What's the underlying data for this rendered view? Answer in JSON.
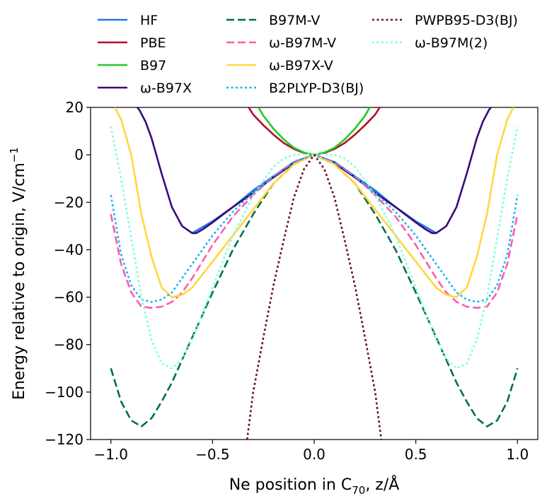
{
  "chart_data": {
    "type": "line",
    "title": "",
    "xlabel": "Ne position in C",
    "xlabel_sub": "70",
    "xlabel_tail": ", z/Å",
    "ylabel": "Energy relative to origin, V/cm",
    "ylabel_sup": "−1",
    "xlim": [
      -1.1,
      1.1
    ],
    "ylim": [
      -120,
      20
    ],
    "xticks": [
      -1.0,
      -0.5,
      0.0,
      0.5,
      1.0
    ],
    "xtick_labels": [
      "−1.0",
      "−0.5",
      "0.0",
      "0.5",
      "1.0"
    ],
    "yticks": [
      -120,
      -100,
      -80,
      -60,
      -40,
      -20,
      0,
      20
    ],
    "ytick_labels": [
      "−120",
      "−100",
      "−80",
      "−60",
      "−40",
      "−20",
      "0",
      "20"
    ],
    "legend_position": "top, outside, 3 columns",
    "series": [
      {
        "name": "HF",
        "color": "#1f77e8",
        "dash": "solid",
        "x": [
          0,
          0.1,
          0.2,
          0.3,
          0.4,
          0.5,
          0.6
        ],
        "y": [
          0,
          -3,
          -9,
          -15,
          -22,
          -28,
          -33
        ]
      },
      {
        "name": "PBE",
        "color": "#b0102a",
        "dash": "solid",
        "x": [
          0,
          0.05,
          0.1,
          0.15,
          0.2,
          0.25,
          0.3,
          0.33
        ],
        "y": [
          0,
          0.8,
          2.5,
          5,
          8.5,
          12.5,
          17,
          21
        ]
      },
      {
        "name": "B97",
        "color": "#22cc22",
        "dash": "solid",
        "x": [
          0,
          0.05,
          0.1,
          0.15,
          0.2,
          0.25,
          0.28
        ],
        "y": [
          0,
          1,
          3,
          6.5,
          11,
          16.5,
          21
        ]
      },
      {
        "name": "ω-B97X",
        "color": "#3a0a78",
        "dash": "solid",
        "x": [
          0,
          0.1,
          0.2,
          0.3,
          0.4,
          0.5,
          0.55,
          0.58,
          0.6,
          0.65,
          0.7,
          0.75,
          0.8,
          0.83,
          0.86,
          0.88
        ],
        "y": [
          0,
          -3.5,
          -9.5,
          -16,
          -22,
          -28.5,
          -31.5,
          -33,
          -33,
          -30,
          -22,
          -8,
          7,
          14,
          19,
          21
        ]
      },
      {
        "name": "B97M-V",
        "color": "#006e50",
        "dash": "dashed",
        "x": [
          0,
          0.1,
          0.2,
          0.3,
          0.4,
          0.5,
          0.6,
          0.7,
          0.75,
          0.8,
          0.85,
          0.9,
          0.95,
          1.0
        ],
        "y": [
          0,
          -4,
          -12,
          -25,
          -40,
          -58,
          -77,
          -96,
          -104,
          -111,
          -114.5,
          -112,
          -104,
          -90
        ]
      },
      {
        "name": "ω-B97M-V",
        "color": "#ff5aaa",
        "dash": "dashed",
        "x": [
          0,
          0.1,
          0.2,
          0.3,
          0.4,
          0.5,
          0.6,
          0.65,
          0.7,
          0.75,
          0.8,
          0.85,
          0.9,
          0.95,
          1.0
        ],
        "y": [
          0,
          -3,
          -9,
          -17,
          -26,
          -38,
          -52,
          -58,
          -62,
          -64,
          -64.5,
          -64,
          -58,
          -46,
          -25
        ]
      },
      {
        "name": "ω-B97X-V",
        "color": "#ffd740",
        "dash": "solid",
        "x": [
          0,
          0.1,
          0.2,
          0.3,
          0.4,
          0.5,
          0.6,
          0.65,
          0.7,
          0.75,
          0.8,
          0.85,
          0.9,
          0.95,
          0.98
        ],
        "y": [
          0,
          -4,
          -12,
          -23,
          -34,
          -45,
          -56,
          -59,
          -60,
          -56,
          -43,
          -25,
          0,
          15,
          20
        ]
      },
      {
        "name": "B2PLYP-D3(BJ)",
        "color": "#1ab4f0",
        "dash": "dotted",
        "x": [
          0,
          0.1,
          0.2,
          0.3,
          0.4,
          0.5,
          0.6,
          0.7,
          0.75,
          0.8,
          0.85,
          0.9,
          0.95,
          1.0
        ],
        "y": [
          0,
          -3,
          -9,
          -16,
          -24,
          -34,
          -46,
          -58,
          -61,
          -62,
          -61,
          -55,
          -42,
          -17
        ]
      },
      {
        "name": "PWPB95-D3(BJ)",
        "color": "#6a0a3a",
        "dash": "dotted",
        "x": [
          0,
          0.05,
          0.1,
          0.15,
          0.2,
          0.25,
          0.3,
          0.33
        ],
        "y": [
          0,
          -6,
          -18,
          -36,
          -55,
          -77,
          -100,
          -120
        ]
      },
      {
        "name": "ω-B97M(2)",
        "color": "#7fffd8",
        "dash": "dotted",
        "x": [
          0,
          0.1,
          0.15,
          0.2,
          0.3,
          0.4,
          0.5,
          0.55,
          0.6,
          0.65,
          0.7,
          0.75,
          0.8,
          0.85,
          0.9,
          0.95,
          1.0
        ],
        "y": [
          0.5,
          0,
          -1.5,
          -5,
          -17,
          -34,
          -56,
          -67,
          -78,
          -86,
          -90,
          -88,
          -78,
          -60,
          -35,
          -10,
          12
        ]
      }
    ]
  }
}
